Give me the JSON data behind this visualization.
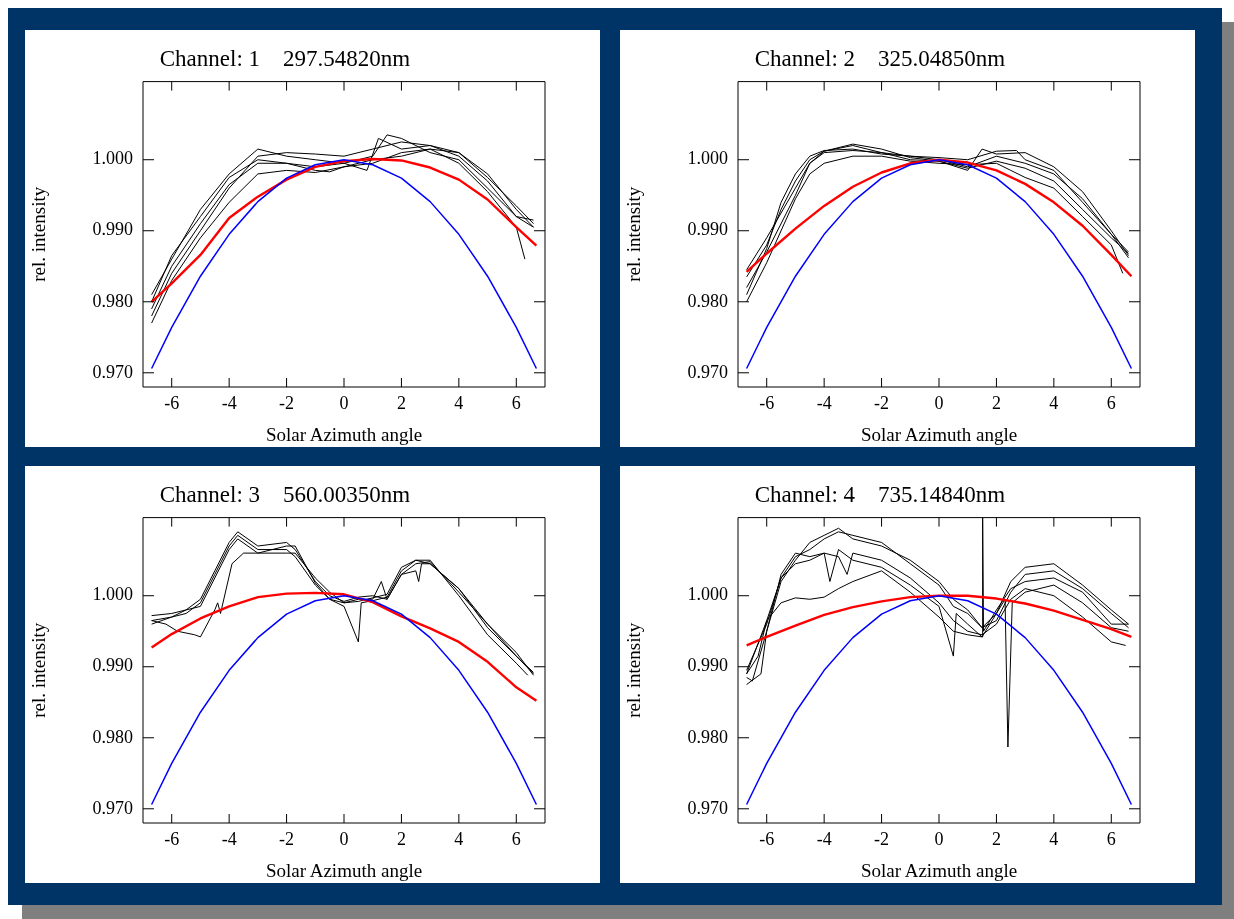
{
  "chart_data": [
    {
      "type": "line",
      "title": "Channel: 1    297.54820nm",
      "xlabel": "Solar Azimuth angle",
      "ylabel": "rel. intensity",
      "xlim": [
        -7,
        7
      ],
      "ylim": [
        0.968,
        1.011
      ],
      "xticks": [
        -6,
        -4,
        -2,
        0,
        2,
        4,
        6
      ],
      "yticks": [
        {
          "value": 0.97,
          "label": "0.970"
        },
        {
          "value": 0.98,
          "label": "0.980"
        },
        {
          "value": 0.99,
          "label": "0.990"
        },
        {
          "value": 1.0,
          "label": "1.000"
        }
      ],
      "legend": false,
      "series": [
        {
          "color": "#000000",
          "x": [
            -6.7,
            -6,
            -5,
            -4,
            -3,
            -2,
            -1,
            0,
            1,
            2,
            3,
            4,
            5,
            6,
            6.6
          ],
          "values": [
            0.978,
            0.984,
            0.99,
            0.996,
            1.0005,
            1.001,
            1.0008,
            1.0005,
            1.0015,
            1.0025,
            1.002,
            1.001,
            0.9975,
            0.9935,
            0.991
          ]
        },
        {
          "color": "#000000",
          "x": [
            -6.7,
            -6,
            -5,
            -4,
            -3,
            -2,
            -1,
            0,
            0.8,
            1.2,
            2,
            3,
            4,
            5,
            6,
            6.6
          ],
          "values": [
            0.981,
            0.986,
            0.993,
            0.998,
            1.0015,
            1.0005,
            1.0,
            0.9995,
            0.9985,
            1.003,
            1.0015,
            1.002,
            1.0005,
            0.997,
            0.992,
            0.9905
          ]
        },
        {
          "color": "#000000",
          "x": [
            -6.7,
            -6,
            -5,
            -4,
            -3,
            -2,
            -1,
            0,
            1,
            2,
            3,
            4,
            5,
            6,
            6.3
          ],
          "values": [
            0.977,
            0.983,
            0.989,
            0.994,
            0.998,
            0.9985,
            0.9982,
            0.999,
            0.9995,
            1.001,
            1.0015,
            0.9995,
            0.9955,
            0.9905,
            0.986
          ]
        },
        {
          "color": "#000000",
          "x": [
            -6.7,
            -6,
            -5,
            -4,
            -3,
            -2,
            -1,
            0,
            1,
            1.5,
            2,
            3,
            4,
            5,
            6,
            6.6
          ],
          "values": [
            0.979,
            0.985,
            0.991,
            0.9965,
            0.9995,
            0.9995,
            0.999,
            0.9995,
            1.0005,
            1.0035,
            1.003,
            1.001,
            1.0,
            0.996,
            0.992,
            0.9915
          ]
        },
        {
          "color": "#000000",
          "x": [
            -6.7,
            -6,
            -5,
            -4,
            -3,
            -2,
            -1,
            -0.5,
            0,
            1,
            2,
            3,
            4,
            5,
            6,
            6.6
          ],
          "values": [
            0.98,
            0.9865,
            0.992,
            0.9975,
            1.0,
            0.9995,
            0.9985,
            0.9983,
            0.999,
            1.0,
            1.0005,
            1.0015,
            1.001,
            0.998,
            0.993,
            0.9905
          ]
        },
        {
          "color": "#ff0000",
          "x": [
            -6.7,
            -6,
            -5,
            -4,
            -3,
            -2,
            -1,
            0,
            1,
            2,
            3,
            4,
            5,
            6,
            6.7
          ],
          "values": [
            0.98,
            0.9826,
            0.9866,
            0.9918,
            0.9948,
            0.9972,
            0.999,
            0.9998,
            1.0001,
            0.9999,
            0.9989,
            0.9972,
            0.9944,
            0.9905,
            0.9879
          ]
        },
        {
          "color": "#0000ff",
          "x": [
            -6.7,
            -6,
            -5,
            -4,
            -3,
            -2,
            -1,
            0,
            1,
            2,
            3,
            4,
            5,
            6,
            6.7
          ],
          "values": [
            0.9706,
            0.9764,
            0.9836,
            0.9895,
            0.9941,
            0.9974,
            0.9993,
            1.0,
            0.9993,
            0.9974,
            0.9941,
            0.9895,
            0.9836,
            0.9764,
            0.9706
          ]
        }
      ]
    },
    {
      "type": "line",
      "title": "Channel: 2    325.04850nm",
      "xlabel": "Solar Azimuth angle",
      "ylabel": "rel. intensity",
      "xlim": [
        -7,
        7
      ],
      "ylim": [
        0.968,
        1.011
      ],
      "xticks": [
        -6,
        -4,
        -2,
        0,
        2,
        4,
        6
      ],
      "yticks": [
        {
          "value": 0.97,
          "label": "0.970"
        },
        {
          "value": 0.98,
          "label": "0.980"
        },
        {
          "value": 0.99,
          "label": "0.990"
        },
        {
          "value": 1.0,
          "label": "1.000"
        }
      ],
      "legend": false,
      "series": [
        {
          "color": "#000000",
          "x": [
            -6.7,
            -6,
            -5.5,
            -5,
            -4.5,
            -4,
            -3,
            -2,
            -1,
            0,
            1,
            2,
            3,
            4,
            5,
            6,
            6.6
          ],
          "values": [
            0.981,
            0.9875,
            0.994,
            0.998,
            1.0005,
            1.0013,
            1.0015,
            1.0008,
            1.0005,
            1.0,
            0.999,
            1.0005,
            0.9995,
            0.998,
            0.9945,
            0.9895,
            0.987
          ]
        },
        {
          "color": "#000000",
          "x": [
            -6.7,
            -6,
            -5.5,
            -5,
            -4.5,
            -4,
            -3,
            -2,
            -1,
            0,
            1,
            1.5,
            2,
            3,
            4,
            5,
            6,
            6.6
          ],
          "values": [
            0.9835,
            0.988,
            0.993,
            0.997,
            1.0,
            1.0012,
            1.0022,
            1.0015,
            1.0003,
            0.9998,
            0.9985,
            1.0015,
            1.0008,
            1.001,
            0.999,
            0.9955,
            0.99,
            0.9865
          ]
        },
        {
          "color": "#000000",
          "x": [
            -6.7,
            -6,
            -5,
            -4.5,
            -4,
            -3,
            -2,
            -1,
            0,
            1,
            2,
            2.5,
            3,
            4,
            5,
            6,
            6.4
          ],
          "values": [
            0.98,
            0.9855,
            0.9945,
            0.998,
            0.9995,
            1.0005,
            1.0005,
            0.9998,
            0.9995,
            0.9993,
            0.9995,
            0.9985,
            0.9975,
            0.996,
            0.992,
            0.988,
            0.984
          ]
        },
        {
          "color": "#000000",
          "x": [
            -6.7,
            -6,
            -5,
            -4.5,
            -4,
            -3,
            -2,
            -1,
            0,
            1,
            2,
            2.7,
            3,
            4,
            5,
            6,
            6.6
          ],
          "values": [
            0.9845,
            0.989,
            0.996,
            0.9995,
            1.0012,
            1.002,
            1.001,
            1.0005,
            1.0003,
            1.0,
            1.0012,
            1.0013,
            1.0,
            0.9985,
            0.994,
            0.9895,
            0.9862
          ]
        },
        {
          "color": "#000000",
          "x": [
            -6.7,
            -6,
            -5,
            -4.5,
            -4,
            -3,
            -2,
            -1,
            0,
            1,
            2,
            3,
            4,
            5,
            6,
            6.6
          ],
          "values": [
            0.982,
            0.987,
            0.995,
            0.9995,
            1.001,
            1.0013,
            1.001,
            1.0,
            0.9998,
            0.9988,
            0.9998,
            0.9988,
            0.997,
            0.993,
            0.989,
            0.9868
          ]
        },
        {
          "color": "#ff0000",
          "x": [
            -6.7,
            -6,
            -5,
            -4,
            -3,
            -2,
            -1,
            0,
            1,
            2,
            3,
            4,
            5,
            6,
            6.7
          ],
          "values": [
            0.9842,
            0.9868,
            0.9903,
            0.9935,
            0.9962,
            0.9982,
            0.9995,
            1.0,
            0.9996,
            0.9985,
            0.9966,
            0.994,
            0.9907,
            0.9866,
            0.9836
          ]
        },
        {
          "color": "#0000ff",
          "x": [
            -6.7,
            -6,
            -5,
            -4,
            -3,
            -2,
            -1,
            0,
            1,
            2,
            3,
            4,
            5,
            6,
            6.7
          ],
          "values": [
            0.9706,
            0.9764,
            0.9836,
            0.9895,
            0.9941,
            0.9974,
            0.9993,
            1.0,
            0.9993,
            0.9974,
            0.9941,
            0.9895,
            0.9836,
            0.9764,
            0.9706
          ]
        }
      ]
    },
    {
      "type": "line",
      "title": "Channel: 3    560.00350nm",
      "xlabel": "Solar Azimuth angle",
      "ylabel": "rel. intensity",
      "xlim": [
        -7,
        7
      ],
      "ylim": [
        0.968,
        1.011
      ],
      "xticks": [
        -6,
        -4,
        -2,
        0,
        2,
        4,
        6
      ],
      "yticks": [
        {
          "value": 0.97,
          "label": "0.970"
        },
        {
          "value": 0.98,
          "label": "0.980"
        },
        {
          "value": 0.99,
          "label": "0.990"
        },
        {
          "value": 1.0,
          "label": "1.000"
        }
      ],
      "legend": false,
      "series": [
        {
          "color": "#000000",
          "x": [
            -6.7,
            -6,
            -5.5,
            -5,
            -4.5,
            -4,
            -3.7,
            -3,
            -2,
            -1.7,
            -1,
            -0.5,
            0,
            0.5,
            1,
            1.5,
            2,
            2.5,
            3,
            4,
            5,
            6,
            6.6
          ],
          "values": [
            0.9965,
            0.997,
            0.998,
            0.9995,
            1.0035,
            1.0075,
            1.009,
            1.007,
            1.0075,
            1.0065,
            1.002,
            1.0,
            0.9992,
            0.9998,
            1.0,
            0.9995,
            1.003,
            1.0045,
            1.0048,
            1.0005,
            0.996,
            0.992,
            0.9888
          ]
        },
        {
          "color": "#000000",
          "x": [
            -6.7,
            -6,
            -5.5,
            -5,
            -4.5,
            -4,
            -3.7,
            -3,
            -2,
            -1.7,
            -1,
            -0.5,
            0,
            0.5,
            0.6,
            1,
            1.5,
            2,
            2.5,
            3,
            4,
            5,
            6,
            6.6
          ],
          "values": [
            0.996,
            0.997,
            0.9975,
            0.999,
            1.003,
            1.007,
            1.0085,
            1.0065,
            1.0065,
            1.0055,
            1.0015,
            0.9995,
            0.9985,
            0.9935,
            0.999,
            0.9993,
            0.9998,
            1.0035,
            1.005,
            1.0045,
            1.001,
            0.9955,
            0.9915,
            0.989
          ]
        },
        {
          "color": "#000000",
          "x": [
            -6.7,
            -6,
            -5.5,
            -5,
            -4.5,
            -4,
            -3.7,
            -3,
            -2,
            -1.7,
            -1,
            -0.5,
            0,
            0.5,
            1,
            1.5,
            2,
            2.5,
            3,
            4,
            5,
            6,
            6.4
          ],
          "values": [
            0.9972,
            0.9975,
            0.998,
            0.9985,
            1.0025,
            1.0065,
            1.008,
            1.006,
            1.006,
            1.006,
            1.0025,
            1.0005,
            0.999,
            0.9992,
            0.9997,
            1.0002,
            1.004,
            1.005,
            1.005,
            1.0,
            0.9945,
            0.9905,
            0.9888
          ]
        },
        {
          "color": "#000000",
          "x": [
            -6.7,
            -6.2,
            -5.8,
            -5.2,
            -5,
            -4.5,
            -4.4,
            -4.3,
            -3.9,
            -3.5,
            -3,
            -2,
            -1.7,
            -1,
            -0.5,
            0,
            0.5,
            1,
            1.3,
            1.5,
            2,
            2.5,
            2.6,
            2.7,
            3,
            4,
            5,
            6,
            6.6
          ],
          "values": [
            0.9965,
            0.996,
            0.995,
            0.9945,
            0.9942,
            0.998,
            0.999,
            0.9975,
            1.0045,
            1.006,
            1.006,
            1.007,
            1.007,
            1.0018,
            0.9995,
            0.999,
            0.9995,
            0.9995,
            1.002,
            0.9995,
            1.003,
            1.0035,
            1.002,
            1.0045,
            1.0045,
            1.001,
            0.996,
            0.9915,
            0.9892
          ]
        },
        {
          "color": "#ff0000",
          "x": [
            -6.7,
            -6,
            -5,
            -4,
            -3,
            -2,
            -1,
            0,
            1,
            2,
            3,
            4,
            5,
            6,
            6.7
          ],
          "values": [
            0.9927,
            0.9946,
            0.9968,
            0.9985,
            0.9998,
            1.0003,
            1.0004,
            1.0002,
            0.9991,
            0.9971,
            0.9954,
            0.9935,
            0.9907,
            0.9871,
            0.9852
          ]
        },
        {
          "color": "#0000ff",
          "x": [
            -6.7,
            -6,
            -5,
            -4,
            -3,
            -2,
            -1,
            0,
            1,
            2,
            3,
            4,
            5,
            6,
            6.7
          ],
          "values": [
            0.9706,
            0.9764,
            0.9836,
            0.9895,
            0.9941,
            0.9974,
            0.9993,
            1.0,
            0.9993,
            0.9974,
            0.9941,
            0.9895,
            0.9836,
            0.9764,
            0.9706
          ]
        }
      ]
    },
    {
      "type": "line",
      "title": "Channel: 4    735.14840nm",
      "xlabel": "Solar Azimuth angle",
      "ylabel": "rel. intensity",
      "xlim": [
        -7,
        7
      ],
      "ylim": [
        0.968,
        1.011
      ],
      "xticks": [
        -6,
        -4,
        -2,
        0,
        2,
        4,
        6
      ],
      "yticks": [
        {
          "value": 0.97,
          "label": "0.970"
        },
        {
          "value": 0.98,
          "label": "0.980"
        },
        {
          "value": 0.99,
          "label": "0.990"
        },
        {
          "value": 1.0,
          "label": "1.000"
        }
      ],
      "legend": false,
      "series": [
        {
          "color": "#000000",
          "x": [
            -6.7,
            -6.3,
            -6,
            -5.5,
            -5,
            -4.5,
            -4,
            -3.5,
            -3,
            -2,
            -1,
            0,
            0.5,
            1,
            1.5,
            2,
            2.5,
            3,
            4,
            5,
            6,
            6.6
          ],
          "values": [
            0.989,
            0.9915,
            0.9965,
            1.0025,
            1.0055,
            1.0065,
            1.008,
            1.009,
            1.0085,
            1.0075,
            1.0045,
            1.0015,
            0.9985,
            0.9975,
            0.9955,
            0.9965,
            1.0005,
            1.003,
            1.0035,
            1.001,
            0.9975,
            0.9955
          ]
        },
        {
          "color": "#000000",
          "x": [
            -6.7,
            -6.5,
            -6,
            -5.5,
            -5,
            -4.5,
            -4,
            -3.8,
            -3.5,
            -3,
            -2,
            -1,
            -0.5,
            0,
            0.5,
            0.6,
            1,
            1.5,
            1.52,
            1.55,
            2,
            2.5,
            3,
            4,
            5,
            6,
            6.6
          ],
          "values": [
            0.9885,
            0.988,
            0.995,
            1.003,
            1.006,
            1.0055,
            1.006,
            1.002,
            1.0065,
            1.005,
            1.004,
            1.0015,
            1.0,
            0.9985,
            0.9915,
            0.9975,
            0.996,
            0.9942,
            1.011,
            0.995,
            0.998,
            1.001,
            1.002,
            1.0025,
            1.0005,
            0.996,
            0.996
          ]
        },
        {
          "color": "#000000",
          "x": [
            -6.7,
            -6,
            -5.5,
            -5,
            -4.5,
            -4,
            -3.5,
            -3,
            -2,
            -1,
            0,
            0.5,
            1,
            1.5,
            2,
            2.3,
            2.4,
            2.55,
            3,
            4,
            5,
            6,
            6.6
          ],
          "values": [
            0.989,
            0.9965,
            0.999,
            0.9997,
            0.9995,
            0.9998,
            1.001,
            1.002,
            1.0035,
            1.0005,
            0.997,
            0.995,
            0.9945,
            0.9942,
            0.9975,
            0.9995,
            0.9787,
            0.999,
            1.0005,
            1.0015,
            0.999,
            0.9955,
            0.995
          ]
        },
        {
          "color": "#000000",
          "x": [
            -6.7,
            -6,
            -5.5,
            -5,
            -4.5,
            -4,
            -3.5,
            -3.2,
            -3,
            -2,
            -1,
            0,
            0.5,
            1,
            1.5,
            2,
            2.5,
            3,
            4,
            5,
            6,
            6.5
          ],
          "values": [
            0.9895,
            0.996,
            1.0025,
            1.0045,
            1.005,
            1.006,
            1.0055,
            1.003,
            1.006,
            1.005,
            1.0025,
            0.999,
            0.9965,
            0.995,
            0.9945,
            0.996,
            0.9995,
            1.001,
            1.0,
            0.997,
            0.9935,
            0.993
          ]
        },
        {
          "color": "#000000",
          "x": [
            -6.7,
            -6.2,
            -6,
            -5.5,
            -5,
            -4.5,
            -4,
            -3.5,
            -3,
            -2,
            -1,
            0,
            0.5,
            1,
            1.5,
            2,
            2.5,
            3,
            4,
            5,
            6,
            6.6
          ],
          "values": [
            0.9875,
            0.989,
            0.995,
            1.002,
            1.005,
            1.0075,
            1.0085,
            1.0095,
            1.008,
            1.007,
            1.005,
            1.002,
            0.9995,
            0.998,
            0.9955,
            0.9975,
            1.002,
            1.004,
            1.0045,
            1.0015,
            0.998,
            0.996
          ]
        },
        {
          "color": "#ff0000",
          "x": [
            -6.7,
            -6,
            -5,
            -4,
            -3,
            -2,
            -1,
            0,
            1,
            2,
            3,
            4,
            5,
            6,
            6.7
          ],
          "values": [
            0.993,
            0.9942,
            0.9958,
            0.9973,
            0.9984,
            0.9992,
            0.9998,
            1.0,
            1.0,
            0.9996,
            0.9989,
            0.9979,
            0.9966,
            0.9953,
            0.9942
          ]
        },
        {
          "color": "#0000ff",
          "x": [
            -6.7,
            -6,
            -5,
            -4,
            -3,
            -2,
            -1,
            0,
            1,
            2,
            3,
            4,
            5,
            6,
            6.7
          ],
          "values": [
            0.9706,
            0.9764,
            0.9836,
            0.9895,
            0.9941,
            0.9974,
            0.9993,
            1.0,
            0.9993,
            0.9974,
            0.9941,
            0.9895,
            0.9836,
            0.9764,
            0.9706
          ]
        }
      ]
    }
  ]
}
